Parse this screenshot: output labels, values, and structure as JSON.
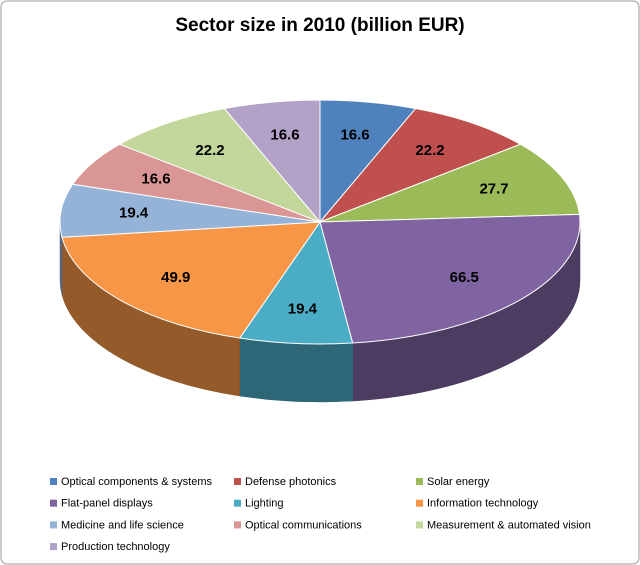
{
  "chart_data": {
    "type": "pie3d",
    "title": "Sector size in 2010 (billion EUR)",
    "categories": [
      "Optical components & systems",
      "Defense photonics",
      "Solar energy",
      "Flat-panel displays",
      "Lighting",
      "Information technology",
      "Medicine and life science",
      "Optical communications",
      "Measurement & automated vision",
      "Production technology"
    ],
    "values": [
      16.6,
      22.2,
      27.7,
      66.5,
      19.4,
      49.9,
      19.4,
      16.6,
      22.2,
      16.6
    ],
    "colors": [
      "#4f81bd",
      "#c0504d",
      "#9bbb59",
      "#8064a2",
      "#4bacc6",
      "#f79646",
      "#95b3d7",
      "#d99694",
      "#c3d69b",
      "#b3a2c7"
    ]
  }
}
